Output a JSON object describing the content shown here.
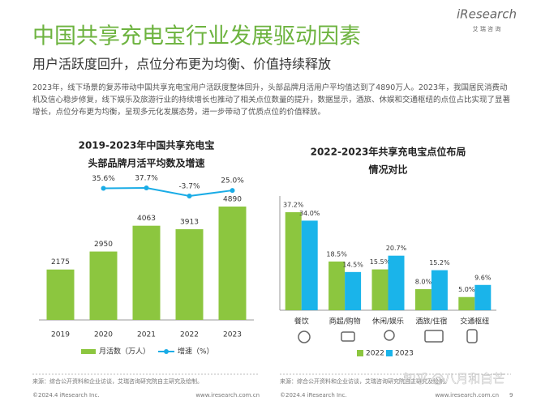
{
  "header": {
    "title": "中国共享充电宝行业发展驱动因素",
    "subtitle": "用户活跃度回升，点位分布更为均衡、价值持续释放",
    "paragraph": "2023年，线下场景的复苏带动中国共享充电宝用户活跃度整体回升，头部品牌月活用户平均值达到了4890万人。2023年，我国居民消费动机及信心稳步修复，线下娱乐及旅游行业的持续增长也推动了相关点位数量的提升，数据显示，酒旅、休娱和交通枢纽的点位占比实现了显著增长，点位分布更为均衡，呈现多元化发展态势，进一步带动了优质点位的价值释放。",
    "logo": "iResearch",
    "logo_sub": "艾 瑞 咨 询"
  },
  "chart_data": [
    {
      "type": "bar",
      "title": [
        "2019-2023年中国共享充电宝",
        "头部品牌月活平均数及增速"
      ],
      "categories": [
        "2019",
        "2020",
        "2021",
        "2022",
        "2023"
      ],
      "series": [
        {
          "name": "月活数（万人）",
          "color": "#8cc63f",
          "values": [
            2175,
            2950,
            4063,
            3913,
            4890
          ]
        },
        {
          "name": "增速（%）",
          "type": "line",
          "color": "#1aace6",
          "values": [
            null,
            35.6,
            37.7,
            -3.7,
            25.0
          ],
          "value_labels": [
            null,
            "35.6%",
            "37.7%",
            "-3.7%",
            "25.0%"
          ]
        }
      ]
    },
    {
      "type": "bar",
      "title": [
        "2022-2023年共享充电宝点位布局",
        "情况对比"
      ],
      "categories": [
        "餐饮",
        "商超/购物",
        "休闲/娱乐",
        "酒旅/住宿",
        "交通枢纽"
      ],
      "series": [
        {
          "name": "2022",
          "color": "#8cc63f",
          "values": [
            37.2,
            18.5,
            15.5,
            8.0,
            5.0
          ],
          "value_labels": [
            "37.2%",
            "18.5%",
            "15.5%",
            "8.0%",
            "5.0%"
          ]
        },
        {
          "name": "2023",
          "color": "#1ab4ea",
          "values": [
            34.0,
            14.5,
            20.7,
            15.2,
            9.6
          ],
          "value_labels": [
            "34.0%",
            "14.5%",
            "20.7%",
            "15.2%",
            "9.6%"
          ]
        }
      ]
    }
  ],
  "footer": {
    "left_source": "来源：综合公开资料和企业访谈，艾瑞咨询研究院自主研究及绘制。",
    "left_copyright": "©2024.4 iResearch Inc.",
    "left_url": "www.iresearch.com.cn",
    "right_source": "来源：综合公开资料和企业访谈，艾瑞咨询研究院自主研究及绘制。",
    "right_copyright": "©2024.4 iResearch Inc.",
    "right_url": "www.iresearch.com.cn",
    "page_number": "9"
  },
  "watermark": "知乎 @八月和白芒"
}
